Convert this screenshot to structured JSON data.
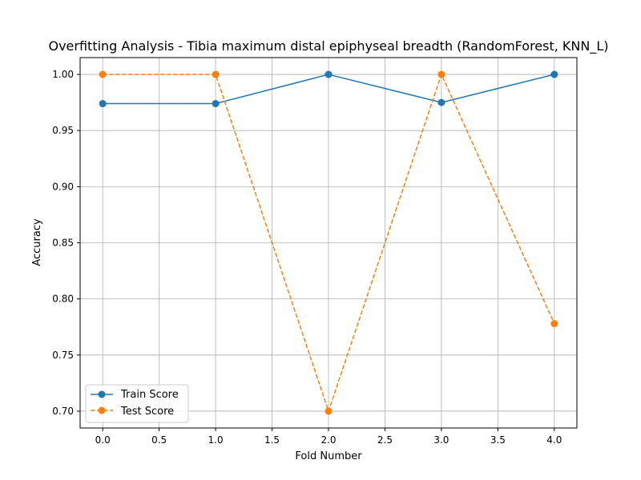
{
  "chart_data": {
    "type": "line",
    "title": "Overfitting Analysis - Tibia maximum distal epiphyseal breadth (RandomForest, KNN_L)",
    "xlabel": "Fold Number",
    "ylabel": "Accuracy",
    "x": [
      0,
      1,
      2,
      3,
      4
    ],
    "xlim": [
      -0.2,
      4.2
    ],
    "ylim": [
      0.685,
      1.015
    ],
    "xticks": [
      0.0,
      0.5,
      1.0,
      1.5,
      2.0,
      2.5,
      3.0,
      3.5,
      4.0
    ],
    "xtick_labels": [
      "0.0",
      "0.5",
      "1.0",
      "1.5",
      "2.0",
      "2.5",
      "3.0",
      "3.5",
      "4.0"
    ],
    "yticks": [
      0.7,
      0.75,
      0.8,
      0.85,
      0.9,
      0.95,
      1.0
    ],
    "ytick_labels": [
      "0.70",
      "0.75",
      "0.80",
      "0.85",
      "0.90",
      "0.95",
      "1.00"
    ],
    "grid": true,
    "legend_position": "lower-left",
    "series": [
      {
        "name": "Train Score",
        "values": [
          0.974,
          0.974,
          1.0,
          0.975,
          1.0
        ],
        "color": "#1f77b4",
        "line_style": "solid",
        "marker": "circle"
      },
      {
        "name": "Test Score",
        "values": [
          1.0,
          1.0,
          0.7,
          1.0,
          0.778
        ],
        "color": "#ff7f0e",
        "line_style": "dashed",
        "marker": "circle"
      }
    ]
  }
}
